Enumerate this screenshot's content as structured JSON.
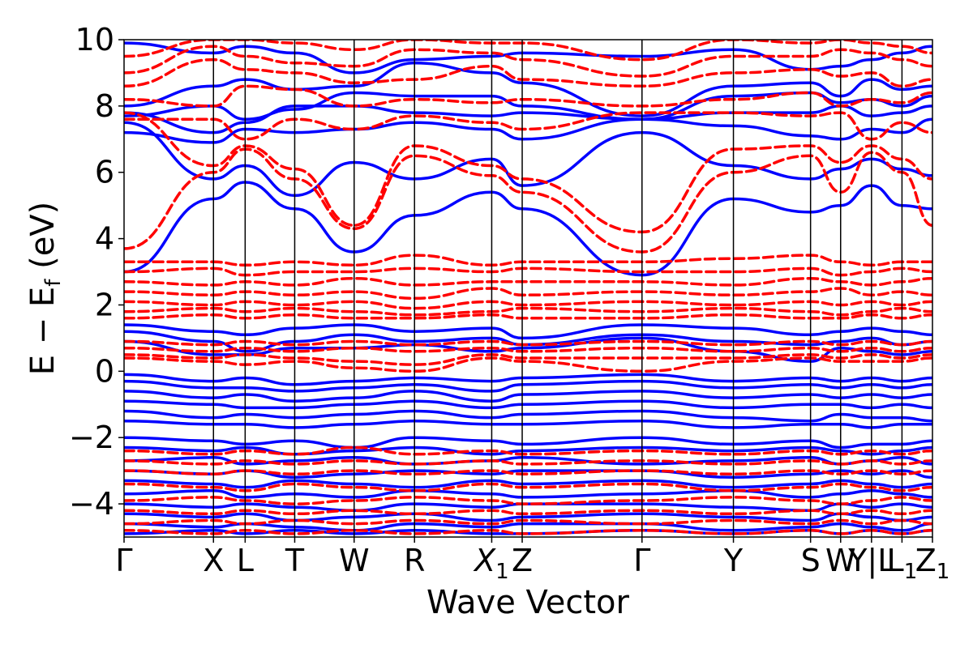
{
  "chart_data": {
    "type": "line",
    "title": "",
    "xlabel": "Wave Vector",
    "ylabel": "E − E_f (eV)",
    "ylabel_main": "E − E",
    "ylabel_sub": "f",
    "ylabel_unit": " (eV)",
    "ylim": [
      -5,
      10
    ],
    "yticks": [
      -4,
      -2,
      0,
      2,
      4,
      6,
      8,
      10
    ],
    "ytick_labels": [
      "−4",
      "−2",
      "0",
      "2",
      "4",
      "6",
      "8",
      "10"
    ],
    "xlim": [
      0,
      1
    ],
    "grid": false,
    "legend": "none",
    "kpoints": [
      {
        "label": "Γ",
        "sub": "",
        "x": 0.0
      },
      {
        "label": "X",
        "sub": "",
        "x": 0.1106
      },
      {
        "label": "L",
        "sub": "",
        "x": 0.1498
      },
      {
        "label": "T",
        "sub": "",
        "x": 0.2111
      },
      {
        "label": "W",
        "sub": "",
        "x": 0.2846
      },
      {
        "label": "R",
        "sub": "",
        "x": 0.3593
      },
      {
        "label": "X",
        "sub": "1",
        "x": 0.4548
      },
      {
        "label": "Z",
        "sub": "",
        "x": 0.4925
      },
      {
        "label": "Γ",
        "sub": "",
        "x": 0.6407
      },
      {
        "label": "Y",
        "sub": "",
        "x": 0.7538
      },
      {
        "label": "S",
        "sub": "",
        "x": 0.8492
      },
      {
        "label": "W",
        "sub": "",
        "x": 0.8864
      },
      {
        "label": "Y|L",
        "sub": "",
        "x": 0.9246
      },
      {
        "label": "L",
        "sub": "1",
        "x": 0.9623
      },
      {
        "label": "Z",
        "sub": "1",
        "x": 1.0
      }
    ],
    "series": [
      {
        "style": "solid",
        "color": "#0000ff",
        "bands": [
          [
            3.0,
            5.2,
            5.7,
            4.9,
            3.6,
            4.7,
            5.4,
            4.9,
            2.9,
            5.2,
            4.8,
            5.0,
            5.6,
            5.0,
            4.9
          ],
          [
            7.5,
            5.8,
            6.2,
            5.3,
            6.3,
            5.8,
            6.4,
            5.6,
            7.2,
            6.2,
            5.8,
            6.1,
            6.4,
            6.1,
            5.9
          ],
          [
            7.2,
            6.9,
            7.3,
            7.2,
            7.3,
            7.5,
            7.3,
            7.0,
            7.6,
            7.4,
            7.1,
            7.0,
            7.3,
            7.2,
            7.6
          ],
          [
            7.8,
            7.2,
            7.5,
            8.0,
            8.0,
            7.8,
            7.7,
            7.8,
            7.6,
            7.8,
            7.8,
            8.0,
            7.7,
            7.8,
            8.0
          ],
          [
            7.7,
            8.0,
            7.6,
            7.9,
            8.4,
            8.3,
            8.3,
            8.0,
            7.6,
            8.3,
            8.4,
            8.1,
            8.2,
            8.0,
            8.3
          ],
          [
            8.0,
            8.6,
            8.8,
            8.5,
            8.6,
            9.3,
            9.0,
            8.7,
            7.7,
            8.6,
            8.7,
            8.3,
            8.8,
            8.5,
            8.6
          ],
          [
            9.9,
            9.6,
            9.8,
            9.6,
            9.0,
            9.4,
            9.5,
            9.6,
            9.5,
            9.7,
            9.1,
            9.2,
            9.4,
            9.6,
            9.8
          ],
          [
            1.4,
            1.2,
            1.1,
            1.3,
            1.4,
            1.2,
            1.3,
            1.0,
            1.4,
            1.3,
            1.1,
            1.2,
            1.3,
            1.2,
            1.1
          ],
          [
            1.2,
            0.9,
            0.6,
            0.9,
            1.1,
            0.9,
            1.0,
            0.8,
            1.1,
            0.9,
            0.8,
            0.9,
            1.0,
            0.8,
            0.9
          ],
          [
            0.9,
            0.5,
            0.5,
            0.7,
            0.7,
            0.8,
            0.6,
            0.7,
            1.0,
            0.6,
            0.3,
            0.7,
            0.6,
            0.5,
            0.6
          ],
          [
            -0.1,
            -0.3,
            -0.2,
            -0.4,
            -0.3,
            -0.2,
            -0.3,
            -0.2,
            -0.1,
            -0.3,
            -0.2,
            -0.3,
            -0.2,
            -0.3,
            -0.2
          ],
          [
            -0.3,
            -0.5,
            -0.5,
            -0.6,
            -0.5,
            -0.4,
            -0.6,
            -0.4,
            -0.3,
            -0.5,
            -0.4,
            -0.5,
            -0.4,
            -0.5,
            -0.4
          ],
          [
            -0.6,
            -0.8,
            -0.7,
            -0.9,
            -0.8,
            -0.6,
            -0.9,
            -0.7,
            -0.6,
            -0.8,
            -0.7,
            -0.8,
            -0.7,
            -0.8,
            -0.7
          ],
          [
            -0.9,
            -1.0,
            -1.1,
            -1.1,
            -1.0,
            -0.9,
            -1.1,
            -1.0,
            -0.9,
            -1.1,
            -1.0,
            -1.0,
            -1.1,
            -1.0,
            -1.1
          ],
          [
            -1.2,
            -1.4,
            -1.3,
            -1.4,
            -1.3,
            -1.2,
            -1.4,
            -1.3,
            -1.2,
            -1.4,
            -1.5,
            -1.3,
            -1.4,
            -1.4,
            -1.5
          ],
          [
            -1.5,
            -1.6,
            -1.6,
            -1.7,
            -1.6,
            -1.5,
            -1.6,
            -1.6,
            -1.5,
            -1.7,
            -1.6,
            -1.6,
            -1.7,
            -1.6,
            -1.6
          ],
          [
            -2.0,
            -2.1,
            -2.2,
            -2.1,
            -2.3,
            -2.0,
            -2.1,
            -2.2,
            -2.0,
            -2.2,
            -2.1,
            -2.3,
            -2.2,
            -2.2,
            -2.1
          ],
          [
            -2.3,
            -2.4,
            -2.3,
            -2.5,
            -2.4,
            -2.3,
            -2.5,
            -2.4,
            -2.3,
            -2.4,
            -2.3,
            -2.4,
            -2.5,
            -2.4,
            -2.3
          ],
          [
            -2.7,
            -2.6,
            -2.8,
            -2.7,
            -2.6,
            -2.8,
            -2.7,
            -2.6,
            -2.8,
            -2.7,
            -2.6,
            -2.8,
            -2.7,
            -2.6,
            -2.8
          ],
          [
            -3.0,
            -3.1,
            -3.0,
            -3.2,
            -3.1,
            -3.0,
            -3.1,
            -3.0,
            -3.0,
            -3.2,
            -3.1,
            -3.0,
            -3.1,
            -3.0,
            -3.2
          ],
          [
            -3.3,
            -3.4,
            -3.5,
            -3.3,
            -3.4,
            -3.5,
            -3.3,
            -3.4,
            -3.3,
            -3.5,
            -3.4,
            -3.3,
            -3.4,
            -3.5,
            -3.4
          ],
          [
            -3.7,
            -3.6,
            -3.8,
            -3.7,
            -3.8,
            -3.6,
            -3.7,
            -3.8,
            -3.7,
            -3.6,
            -3.8,
            -3.7,
            -3.6,
            -3.7,
            -3.8
          ],
          [
            -4.0,
            -4.1,
            -4.0,
            -4.1,
            -4.2,
            -4.0,
            -4.1,
            -4.0,
            -4.0,
            -4.1,
            -4.2,
            -4.0,
            -4.1,
            -4.0,
            -4.1
          ],
          [
            -4.3,
            -4.4,
            -4.3,
            -4.5,
            -4.4,
            -4.3,
            -4.5,
            -4.4,
            -4.3,
            -4.4,
            -4.5,
            -4.3,
            -4.4,
            -4.5,
            -4.4
          ],
          [
            -4.6,
            -4.7,
            -4.6,
            -4.7,
            -4.8,
            -4.6,
            -4.7,
            -4.6,
            -4.6,
            -4.8,
            -4.7,
            -4.6,
            -4.7,
            -4.8,
            -4.6
          ],
          [
            -4.9,
            -4.8,
            -4.9,
            -4.8,
            -4.9,
            -4.8,
            -4.9,
            -4.9,
            -4.8,
            -4.9,
            -4.8,
            -4.9,
            -4.8,
            -4.9,
            -4.8
          ]
        ]
      },
      {
        "style": "dashed",
        "color": "#ff0000",
        "bands": [
          [
            3.7,
            6.0,
            6.7,
            5.8,
            4.3,
            6.5,
            5.9,
            5.4,
            3.6,
            6.0,
            6.5,
            5.4,
            6.6,
            6.0,
            4.4
          ],
          [
            7.8,
            6.2,
            6.8,
            6.1,
            4.4,
            6.8,
            6.2,
            5.8,
            4.2,
            6.7,
            6.8,
            6.3,
            6.8,
            6.4,
            5.8
          ],
          [
            7.6,
            7.6,
            7.0,
            7.6,
            7.3,
            7.7,
            7.5,
            7.3,
            7.8,
            7.8,
            7.7,
            7.8,
            7.0,
            7.5,
            7.2
          ],
          [
            8.2,
            8.0,
            8.6,
            8.5,
            8.0,
            8.2,
            8.1,
            8.2,
            8.0,
            8.2,
            8.4,
            8.0,
            8.2,
            8.1,
            8.4
          ],
          [
            8.6,
            9.4,
            9.1,
            9.0,
            8.7,
            8.8,
            9.2,
            8.8,
            8.6,
            9.0,
            9.1,
            8.9,
            9.0,
            8.6,
            8.8
          ],
          [
            9.0,
            9.8,
            9.5,
            9.3,
            9.2,
            9.7,
            9.6,
            9.4,
            8.9,
            9.5,
            9.5,
            9.7,
            9.6,
            9.4,
            9.2
          ],
          [
            9.5,
            10.0,
            10.0,
            9.9,
            9.7,
            10.0,
            9.9,
            9.9,
            9.4,
            10.0,
            9.9,
            10.0,
            9.9,
            9.8,
            9.6
          ],
          [
            3.3,
            3.3,
            3.2,
            3.3,
            3.2,
            3.5,
            3.2,
            3.3,
            3.3,
            3.4,
            3.5,
            3.3,
            3.2,
            3.3,
            3.3
          ],
          [
            3.0,
            3.1,
            2.9,
            3.0,
            3.0,
            3.1,
            3.0,
            3.1,
            3.0,
            3.0,
            3.1,
            2.9,
            3.0,
            3.1,
            3.0
          ],
          [
            2.7,
            2.6,
            2.7,
            2.6,
            2.8,
            2.6,
            2.7,
            2.7,
            2.7,
            2.6,
            2.8,
            2.7,
            2.6,
            2.7,
            2.8
          ],
          [
            2.4,
            2.3,
            2.4,
            2.3,
            2.4,
            2.2,
            2.5,
            2.3,
            2.4,
            2.3,
            2.4,
            2.5,
            2.3,
            2.4,
            2.3
          ],
          [
            2.1,
            2.0,
            2.1,
            2.0,
            2.1,
            1.9,
            2.1,
            2.0,
            2.1,
            2.0,
            2.1,
            2.0,
            2.1,
            2.0,
            2.1
          ],
          [
            1.8,
            1.9,
            1.8,
            1.9,
            1.8,
            1.7,
            1.8,
            1.9,
            1.8,
            1.9,
            1.8,
            1.7,
            1.8,
            1.9,
            1.8
          ],
          [
            1.6,
            1.7,
            1.6,
            1.7,
            1.6,
            1.6,
            1.7,
            1.6,
            1.6,
            1.7,
            1.6,
            1.6,
            1.7,
            1.6,
            1.7
          ],
          [
            0.9,
            0.8,
            0.9,
            0.8,
            0.9,
            0.8,
            0.9,
            0.8,
            0.9,
            0.8,
            0.9,
            0.8,
            0.9,
            0.8,
            0.9
          ],
          [
            0.7,
            0.6,
            0.7,
            0.6,
            0.7,
            0.6,
            0.7,
            0.6,
            0.7,
            0.6,
            0.7,
            0.6,
            0.7,
            0.6,
            0.7
          ],
          [
            0.5,
            0.4,
            0.5,
            0.4,
            0.3,
            0.2,
            0.5,
            0.4,
            0.4,
            0.4,
            0.5,
            0.4,
            0.5,
            0.4,
            0.5
          ],
          [
            0.4,
            0.3,
            0.2,
            0.3,
            0.1,
            0.0,
            0.4,
            0.3,
            0.0,
            0.3,
            0.4,
            0.3,
            0.3,
            0.3,
            0.4
          ],
          [
            -2.4,
            -2.5,
            -2.4,
            -2.5,
            -2.3,
            -2.5,
            -2.4,
            -2.5,
            -2.4,
            -2.5,
            -2.4,
            -2.5,
            -2.4,
            -2.5,
            -2.4
          ],
          [
            -2.7,
            -2.8,
            -2.7,
            -2.8,
            -2.7,
            -2.8,
            -2.7,
            -2.8,
            -2.7,
            -2.8,
            -2.7,
            -2.8,
            -2.7,
            -2.8,
            -2.7
          ],
          [
            -3.0,
            -3.1,
            -3.0,
            -3.1,
            -3.0,
            -3.1,
            -3.0,
            -3.1,
            -3.0,
            -3.1,
            -3.0,
            -3.1,
            -3.0,
            -3.1,
            -3.0
          ],
          [
            -3.4,
            -3.5,
            -3.6,
            -3.4,
            -3.5,
            -3.6,
            -3.4,
            -3.5,
            -3.4,
            -3.6,
            -3.5,
            -3.4,
            -3.5,
            -3.6,
            -3.5
          ],
          [
            -3.9,
            -3.8,
            -3.9,
            -4.0,
            -3.9,
            -3.8,
            -3.9,
            -4.0,
            -3.9,
            -3.8,
            -3.9,
            -4.0,
            -3.9,
            -3.8,
            -3.9
          ],
          [
            -4.2,
            -4.3,
            -4.2,
            -4.3,
            -4.2,
            -4.3,
            -4.2,
            -4.3,
            -4.2,
            -4.3,
            -4.2,
            -4.3,
            -4.2,
            -4.3,
            -4.2
          ],
          [
            -4.6,
            -4.5,
            -4.6,
            -4.5,
            -4.6,
            -4.5,
            -4.6,
            -4.5,
            -4.6,
            -4.5,
            -4.6,
            -4.5,
            -4.6,
            -4.5,
            -4.6
          ],
          [
            -4.8,
            -4.9,
            -4.8,
            -4.9,
            -4.8,
            -4.9,
            -4.8,
            -4.9,
            -4.8,
            -4.9,
            -4.8,
            -4.9,
            -4.8,
            -4.9,
            -4.8
          ]
        ]
      }
    ]
  }
}
